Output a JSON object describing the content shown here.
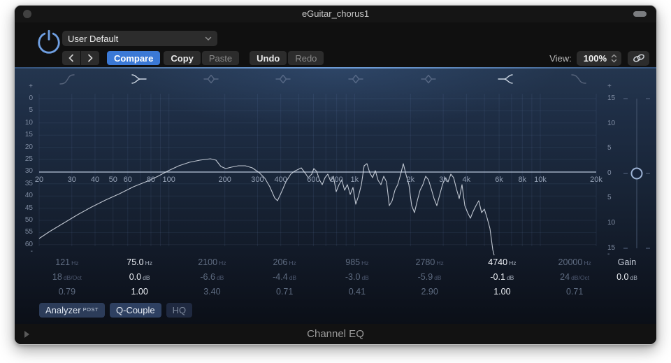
{
  "titlebar": {
    "title": "eGuitar_chorus1"
  },
  "toolbar": {
    "preset_value": "User Default",
    "compare": "Compare",
    "copy": "Copy",
    "paste": "Paste",
    "undo": "Undo",
    "redo": "Redo",
    "view_label": "View:",
    "view_value": "100%"
  },
  "graph": {
    "left_scale": [
      "+",
      "0",
      "5",
      "10",
      "15",
      "20",
      "25",
      "30",
      "35",
      "40",
      "45",
      "50",
      "55",
      "60",
      "-"
    ],
    "right_scale": [
      "+",
      "15",
      "10",
      "5",
      "0",
      "5",
      "10",
      "15",
      "-"
    ],
    "freq_labels": [
      "20",
      "30",
      "40",
      "50",
      "60",
      "80",
      "100",
      "200",
      "300",
      "400",
      "600",
      "800",
      "1k",
      "2k",
      "3k",
      "4k",
      "6k",
      "8k",
      "10k",
      "20k"
    ],
    "band_icons": [
      "high-pass",
      "low-shelf",
      "bell",
      "bell",
      "bell",
      "bell",
      "high-shelf",
      "low-pass"
    ],
    "spectrum_points": "35,245 50,235 70,223 90,211 110,200 130,190 150,181 170,171 190,163 205,156 220,148 235,141 250,136 265,133 280,131 288,133 295,142 302,145 310,143 320,141 330,141 340,144 350,151 358,159 365,171 372,187 376,191 382,178 388,164 395,153 400,149 406,146 410,144 416,152 420,158 425,153 428,145 432,149 436,161 440,168 444,158 448,153 452,163 456,156 460,178 464,168 468,161 472,176 476,168 480,182 484,172 488,196 492,184 496,168 500,141 504,138 508,151 512,158 516,148 520,162 524,168 528,156 532,164 536,198 540,191 544,176 548,168 552,154 556,138 560,154 564,168 568,198 572,208 576,191 580,176 584,168 588,156 592,161 596,174 600,188 604,198 608,183 612,168 616,158 620,164 624,153 628,158 632,174 636,188 640,168 644,198 648,208 652,216 656,206 660,198 664,191 668,208 672,203 676,216 680,231 682,246 684,261 686,269"
  },
  "bands": [
    {
      "freq": "121",
      "freq_unit": "Hz",
      "gain": "18",
      "gain_unit": "dB/Oct",
      "q": "0.79",
      "active": false
    },
    {
      "freq": "75.0",
      "freq_unit": "Hz",
      "gain": "0.0",
      "gain_unit": "dB",
      "q": "1.00",
      "active": true
    },
    {
      "freq": "2100",
      "freq_unit": "Hz",
      "gain": "-6.6",
      "gain_unit": "dB",
      "q": "3.40",
      "active": false
    },
    {
      "freq": "206",
      "freq_unit": "Hz",
      "gain": "-4.4",
      "gain_unit": "dB",
      "q": "0.71",
      "active": false
    },
    {
      "freq": "985",
      "freq_unit": "Hz",
      "gain": "-3.0",
      "gain_unit": "dB",
      "q": "0.41",
      "active": false
    },
    {
      "freq": "2780",
      "freq_unit": "Hz",
      "gain": "-5.9",
      "gain_unit": "dB",
      "q": "2.90",
      "active": false
    },
    {
      "freq": "4740",
      "freq_unit": "Hz",
      "gain": "-0.1",
      "gain_unit": "dB",
      "q": "1.00",
      "active": true
    },
    {
      "freq": "20000",
      "freq_unit": "Hz",
      "gain": "24",
      "gain_unit": "dB/Oct",
      "q": "0.71",
      "active": false
    }
  ],
  "master_gain": {
    "label": "Gain",
    "value": "0.0",
    "unit": "dB"
  },
  "analyzer_row": {
    "analyzer": "Analyzer",
    "analyzer_mode": "POST",
    "q_couple": "Q-Couple",
    "hq": "HQ"
  },
  "footer": {
    "plugin_name": "Channel EQ"
  },
  "colors": {
    "accent_blue": "#3b79d6",
    "power_blue": "#6f9fe2",
    "spectrum_line": "#dde3ec",
    "panel_blue": "#1d2c43",
    "active_text": "#eef1f6",
    "inactive_text": "#5e6b80"
  }
}
